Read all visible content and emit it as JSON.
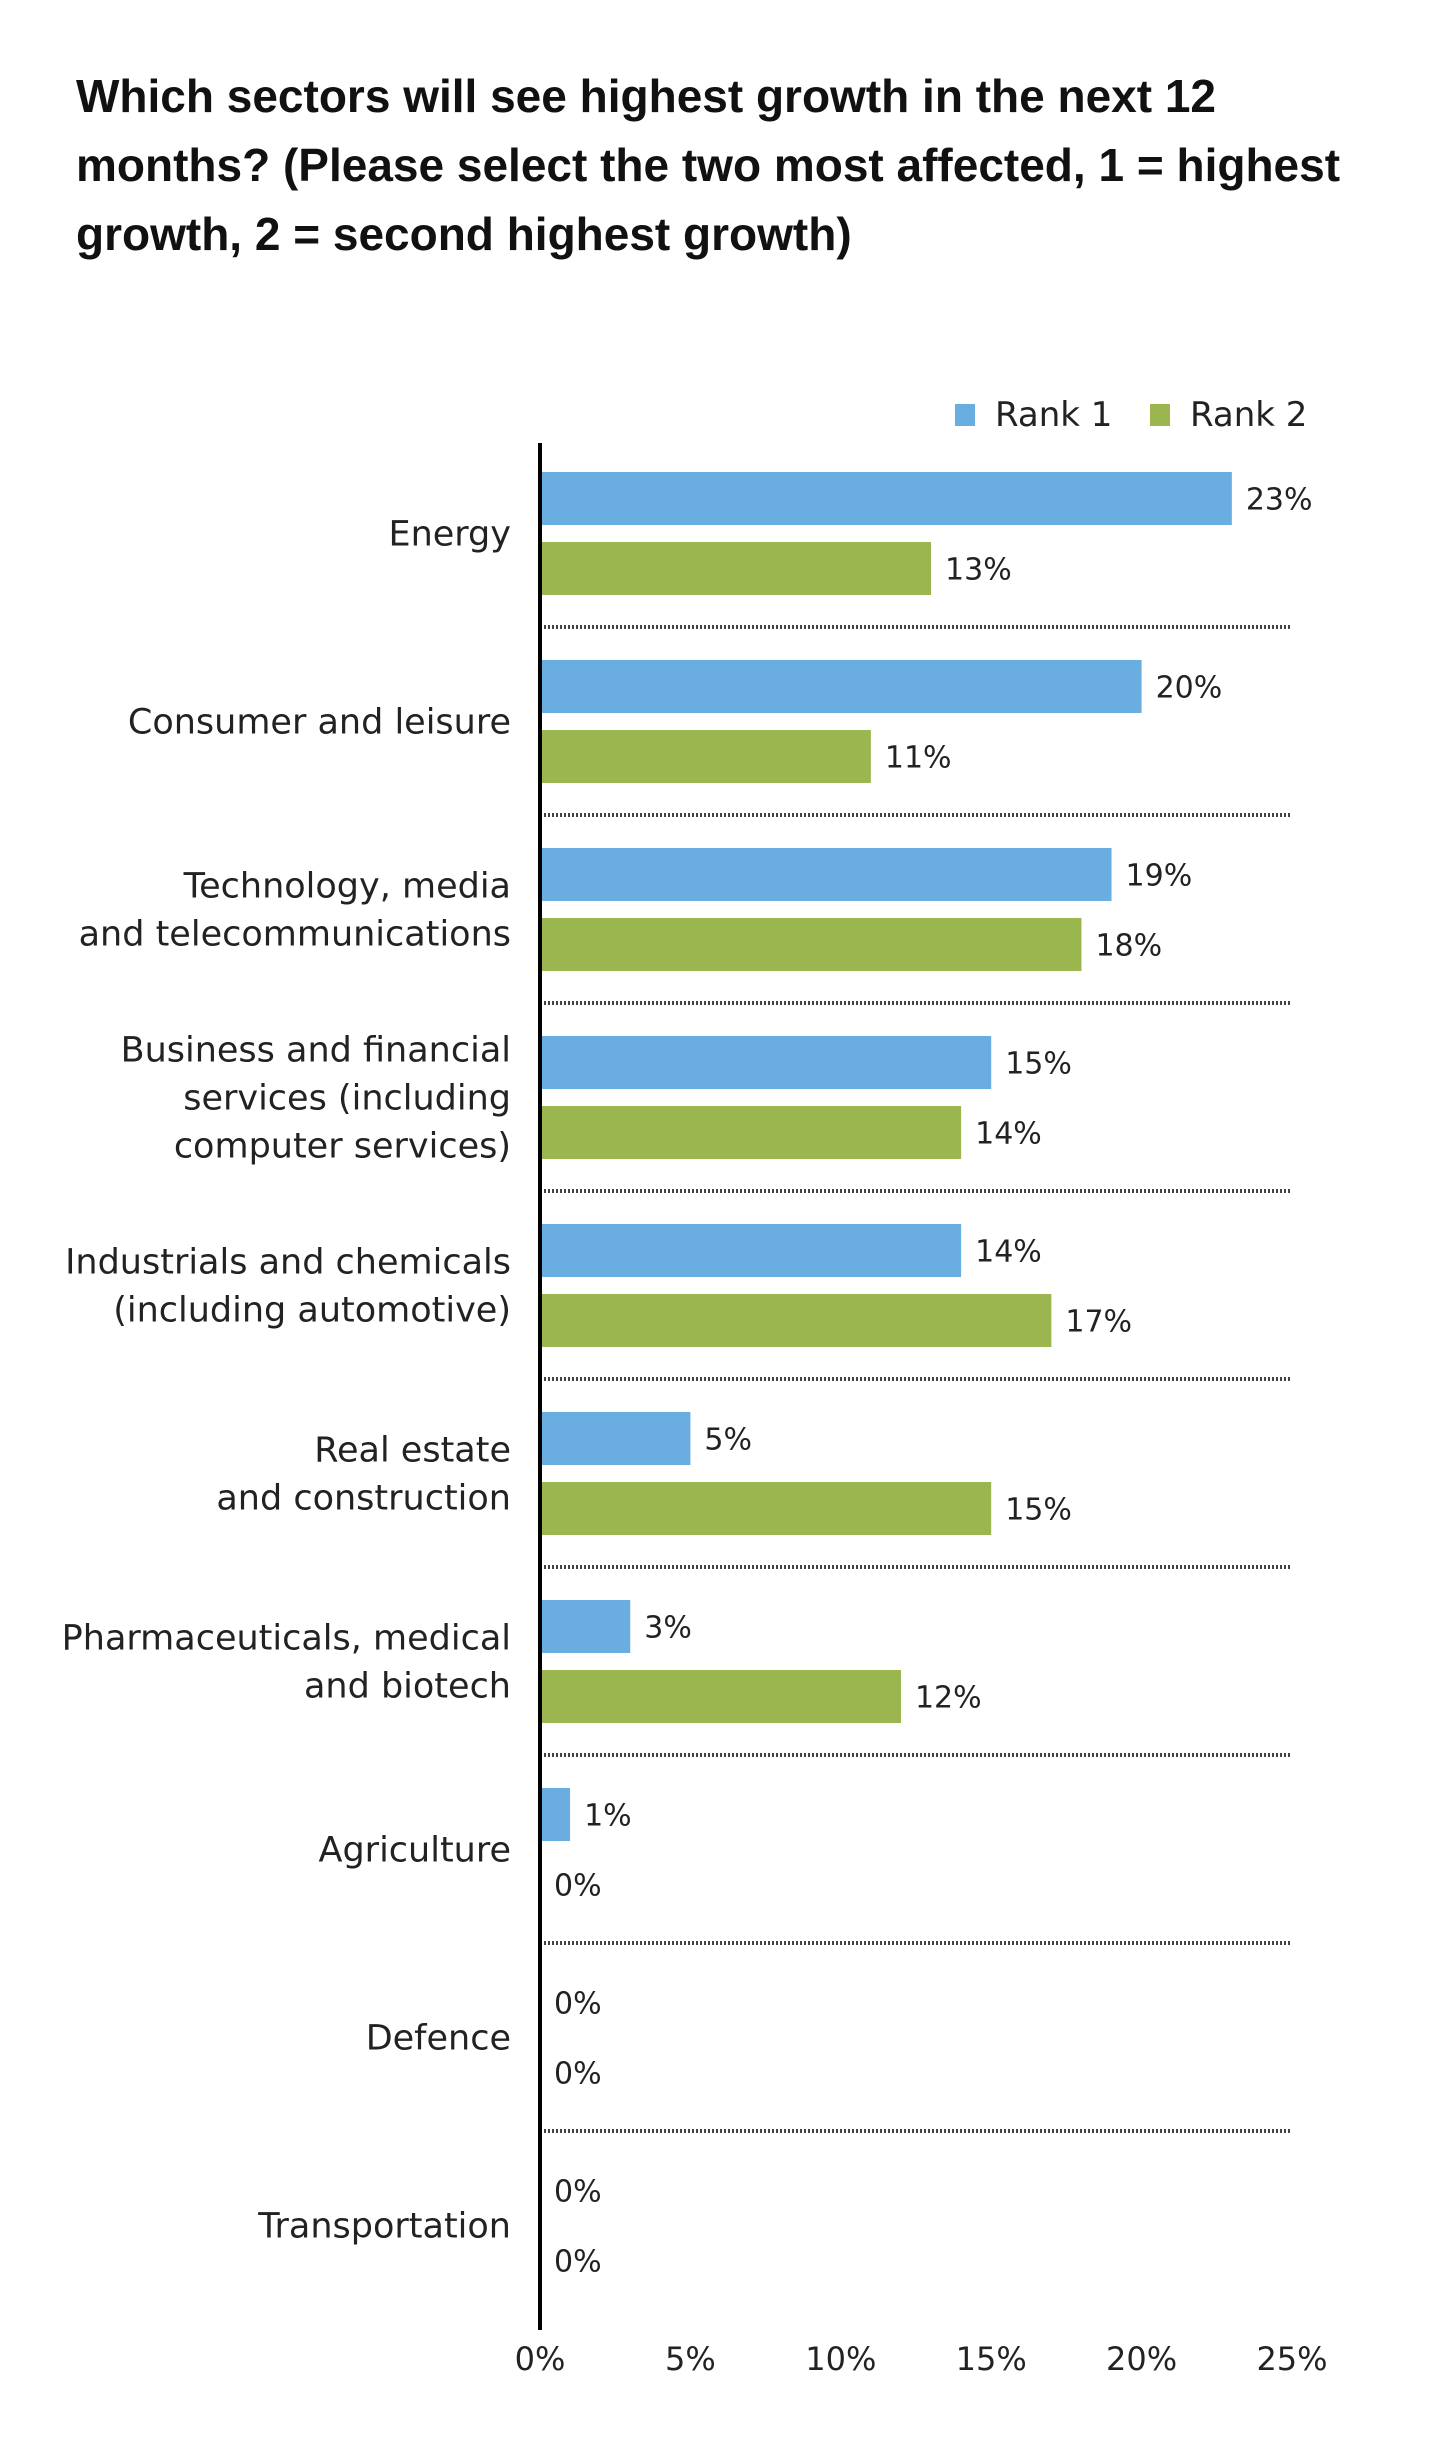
{
  "chart_data": {
    "type": "bar",
    "orientation": "horizontal",
    "title": "Which sectors will see highest growth in the next 12 months? (Please select the two most affected, 1 = highest growth, 2 = second highest growth)",
    "categories": [
      "Energy",
      "Consumer and leisure",
      "Technology, media\nand telecommunications",
      "Business and financial\nservices (including\ncomputer services)",
      "Industrials and chemicals\n(including automotive)",
      "Real estate\nand construction",
      "Pharmaceuticals, medical\nand biotech",
      "Agriculture",
      "Defence",
      "Transportation"
    ],
    "series": [
      {
        "name": "Rank 1",
        "color": "#6aade0",
        "values": [
          23,
          20,
          19,
          15,
          14,
          5,
          3,
          1,
          0,
          0
        ]
      },
      {
        "name": "Rank 2",
        "color": "#9bb54f",
        "values": [
          13,
          11,
          18,
          14,
          17,
          15,
          12,
          0,
          0,
          0
        ]
      }
    ],
    "xlim": [
      0,
      25
    ],
    "xticks": [
      "0%",
      "5%",
      "10%",
      "15%",
      "20%",
      "25%"
    ],
    "value_suffix": "%",
    "legend": "top-right",
    "grid": false,
    "separators": "dotted"
  }
}
